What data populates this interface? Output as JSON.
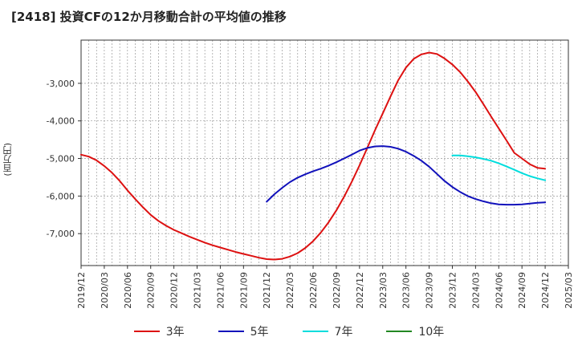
{
  "chart_data": {
    "type": "line",
    "title": "[2418]  投資CFの12か月移動合計の平均値の推移",
    "ylabel": "(百万円)",
    "xlabel": "",
    "ylim": [
      -7850,
      -1850
    ],
    "yticks": [
      -3000,
      -4000,
      -5000,
      -6000,
      -7000
    ],
    "ytick_labels": [
      "-3,000",
      "-4,000",
      "-5,000",
      "-6,000",
      "-7,000"
    ],
    "xticks": [
      "2019/12",
      "2020/03",
      "2020/06",
      "2020/09",
      "2020/12",
      "2021/03",
      "2021/06",
      "2021/09",
      "2021/12",
      "2022/03",
      "2022/06",
      "2022/09",
      "2022/12",
      "2023/03",
      "2023/06",
      "2023/09",
      "2023/12",
      "2024/03",
      "2024/06",
      "2024/09",
      "2024/12",
      "2025/03"
    ],
    "grid": true,
    "legend": "bottom",
    "series": [
      {
        "name": "3年",
        "color": "#dd1111",
        "points": [
          [
            "2019/12",
            -4900
          ],
          [
            "2020/01",
            -4950
          ],
          [
            "2020/02",
            -5050
          ],
          [
            "2020/03",
            -5200
          ],
          [
            "2020/04",
            -5380
          ],
          [
            "2020/05",
            -5600
          ],
          [
            "2020/06",
            -5850
          ],
          [
            "2020/07",
            -6080
          ],
          [
            "2020/08",
            -6300
          ],
          [
            "2020/09",
            -6500
          ],
          [
            "2020/10",
            -6660
          ],
          [
            "2020/11",
            -6790
          ],
          [
            "2020/12",
            -6900
          ],
          [
            "2021/01",
            -6990
          ],
          [
            "2021/02",
            -7080
          ],
          [
            "2021/03",
            -7160
          ],
          [
            "2021/04",
            -7240
          ],
          [
            "2021/05",
            -7310
          ],
          [
            "2021/06",
            -7370
          ],
          [
            "2021/07",
            -7430
          ],
          [
            "2021/08",
            -7490
          ],
          [
            "2021/09",
            -7540
          ],
          [
            "2021/10",
            -7590
          ],
          [
            "2021/11",
            -7640
          ],
          [
            "2021/12",
            -7680
          ],
          [
            "2022/01",
            -7690
          ],
          [
            "2022/02",
            -7670
          ],
          [
            "2022/03",
            -7610
          ],
          [
            "2022/04",
            -7520
          ],
          [
            "2022/05",
            -7380
          ],
          [
            "2022/06",
            -7200
          ],
          [
            "2022/07",
            -6970
          ],
          [
            "2022/08",
            -6700
          ],
          [
            "2022/09",
            -6380
          ],
          [
            "2022/10",
            -6020
          ],
          [
            "2022/11",
            -5620
          ],
          [
            "2022/12",
            -5180
          ],
          [
            "2023/01",
            -4720
          ],
          [
            "2023/02",
            -4250
          ],
          [
            "2023/03",
            -3800
          ],
          [
            "2023/04",
            -3350
          ],
          [
            "2023/05",
            -2920
          ],
          [
            "2023/06",
            -2580
          ],
          [
            "2023/07",
            -2350
          ],
          [
            "2023/08",
            -2230
          ],
          [
            "2023/09",
            -2180
          ],
          [
            "2023/10",
            -2220
          ],
          [
            "2023/11",
            -2340
          ],
          [
            "2023/12",
            -2500
          ],
          [
            "2024/01",
            -2700
          ],
          [
            "2024/02",
            -2950
          ],
          [
            "2024/03",
            -3230
          ],
          [
            "2024/04",
            -3550
          ],
          [
            "2024/05",
            -3880
          ],
          [
            "2024/06",
            -4200
          ],
          [
            "2024/07",
            -4520
          ],
          [
            "2024/08",
            -4850
          ],
          [
            "2024/09",
            -5000
          ],
          [
            "2024/10",
            -5150
          ],
          [
            "2024/11",
            -5250
          ],
          [
            "2024/12",
            -5270
          ]
        ]
      },
      {
        "name": "5年",
        "color": "#1111bb",
        "points": [
          [
            "2021/12",
            -6150
          ],
          [
            "2022/01",
            -5950
          ],
          [
            "2022/02",
            -5780
          ],
          [
            "2022/03",
            -5630
          ],
          [
            "2022/04",
            -5510
          ],
          [
            "2022/05",
            -5420
          ],
          [
            "2022/06",
            -5340
          ],
          [
            "2022/07",
            -5270
          ],
          [
            "2022/08",
            -5190
          ],
          [
            "2022/09",
            -5100
          ],
          [
            "2022/10",
            -5000
          ],
          [
            "2022/11",
            -4900
          ],
          [
            "2022/12",
            -4790
          ],
          [
            "2023/01",
            -4720
          ],
          [
            "2023/02",
            -4680
          ],
          [
            "2023/03",
            -4670
          ],
          [
            "2023/04",
            -4690
          ],
          [
            "2023/05",
            -4740
          ],
          [
            "2023/06",
            -4820
          ],
          [
            "2023/07",
            -4930
          ],
          [
            "2023/08",
            -5060
          ],
          [
            "2023/09",
            -5220
          ],
          [
            "2023/10",
            -5410
          ],
          [
            "2023/11",
            -5600
          ],
          [
            "2023/12",
            -5760
          ],
          [
            "2024/01",
            -5890
          ],
          [
            "2024/02",
            -6000
          ],
          [
            "2024/03",
            -6080
          ],
          [
            "2024/04",
            -6140
          ],
          [
            "2024/05",
            -6190
          ],
          [
            "2024/06",
            -6220
          ],
          [
            "2024/07",
            -6230
          ],
          [
            "2024/08",
            -6230
          ],
          [
            "2024/09",
            -6220
          ],
          [
            "2024/10",
            -6200
          ],
          [
            "2024/11",
            -6180
          ],
          [
            "2024/12",
            -6170
          ]
        ]
      },
      {
        "name": "7年",
        "color": "#00dddd",
        "points": [
          [
            "2023/12",
            -4920
          ],
          [
            "2024/01",
            -4920
          ],
          [
            "2024/02",
            -4940
          ],
          [
            "2024/03",
            -4970
          ],
          [
            "2024/04",
            -5010
          ],
          [
            "2024/05",
            -5060
          ],
          [
            "2024/06",
            -5130
          ],
          [
            "2024/07",
            -5210
          ],
          [
            "2024/08",
            -5300
          ],
          [
            "2024/09",
            -5390
          ],
          [
            "2024/10",
            -5470
          ],
          [
            "2024/11",
            -5530
          ],
          [
            "2024/12",
            -5580
          ]
        ]
      },
      {
        "name": "10年",
        "color": "#228822",
        "points": []
      }
    ]
  }
}
